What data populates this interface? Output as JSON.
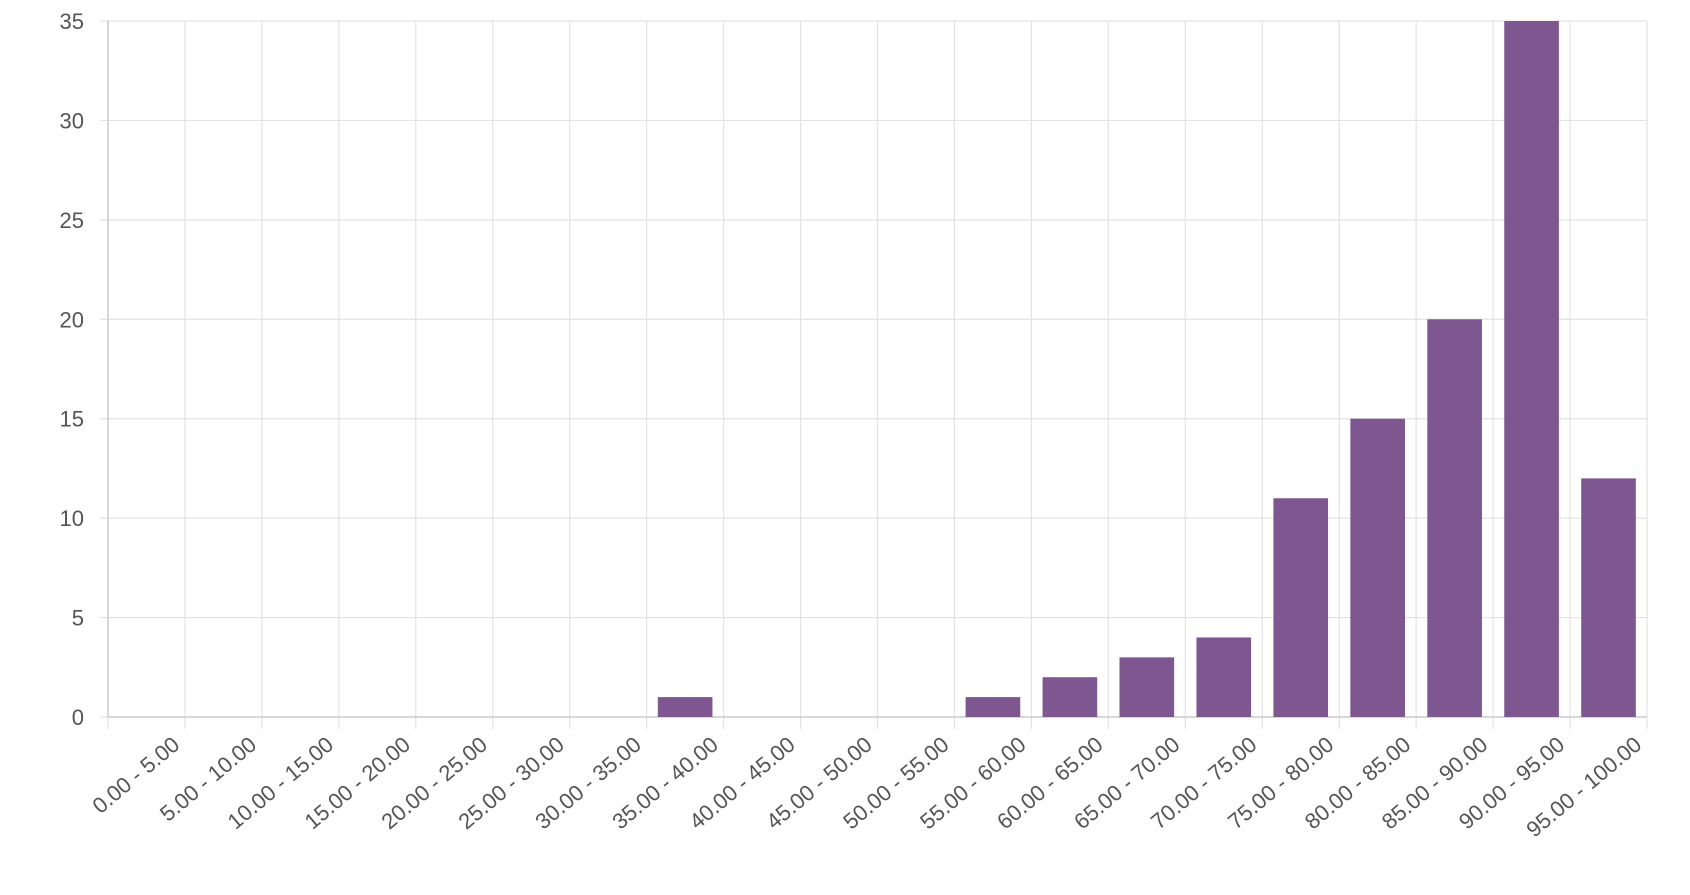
{
  "chart_data": {
    "type": "bar",
    "categories": [
      "0.00 - 5.00",
      "5.00 - 10.00",
      "10.00 - 15.00",
      "15.00 - 20.00",
      "20.00 - 25.00",
      "25.00 - 30.00",
      "30.00 - 35.00",
      "35.00 - 40.00",
      "40.00 - 45.00",
      "45.00 - 50.00",
      "50.00 - 55.00",
      "55.00 - 60.00",
      "60.00 - 65.00",
      "65.00 - 70.00",
      "70.00 - 75.00",
      "75.00 - 80.00",
      "80.00 - 85.00",
      "85.00 - 90.00",
      "90.00 - 95.00",
      "95.00 - 100.00"
    ],
    "values": [
      0,
      0,
      0,
      0,
      0,
      0,
      0,
      1,
      0,
      0,
      0,
      1,
      2,
      3,
      4,
      11,
      15,
      20,
      35,
      12
    ],
    "color": "#7e5690",
    "ylim": [
      0,
      35
    ],
    "yticks": [
      0,
      5,
      10,
      15,
      20,
      25,
      30,
      35
    ],
    "grid": true
  }
}
